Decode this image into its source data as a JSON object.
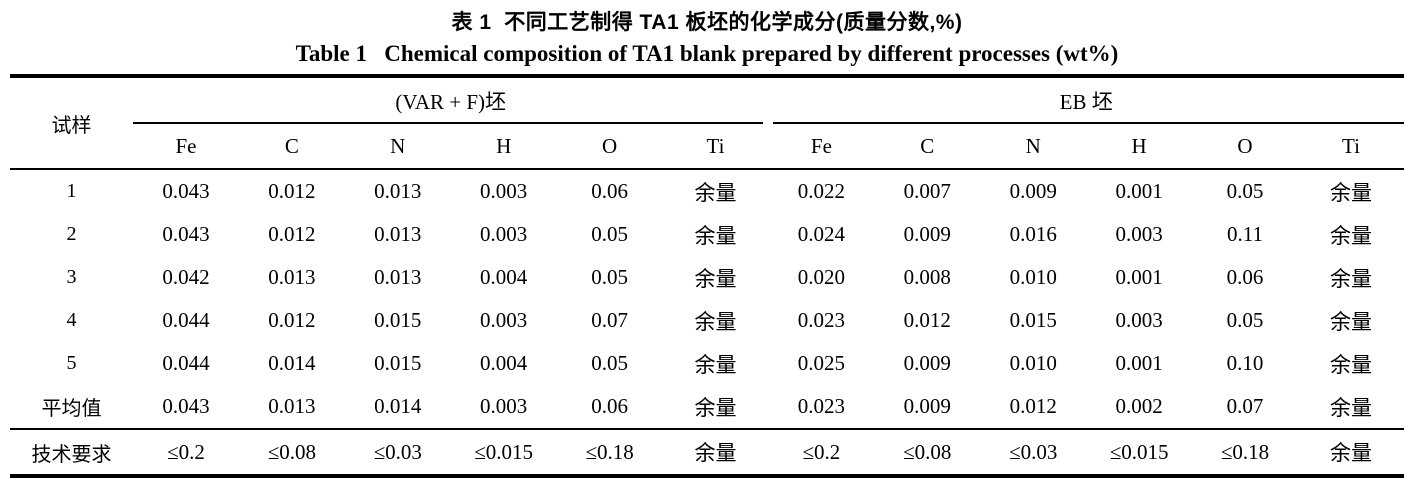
{
  "page": {
    "background": "#ffffff",
    "text_color": "#000000"
  },
  "title": {
    "zh": "表 1  不同工艺制得 TA1 板坯的化学成分(质量分数,%)",
    "en": "Table 1   Chemical composition of TA1 blank prepared by different processes (wt%)"
  },
  "table": {
    "sample_header": "试样",
    "groups": [
      {
        "label": "(VAR + F)坯"
      },
      {
        "label": "EB 坯"
      }
    ],
    "columns": [
      "Fe",
      "C",
      "N",
      "H",
      "O",
      "Ti"
    ],
    "rows": [
      {
        "label": "1",
        "var_f": [
          "0.043",
          "0.012",
          "0.013",
          "0.003",
          "0.06",
          "余量"
        ],
        "eb": [
          "0.022",
          "0.007",
          "0.009",
          "0.001",
          "0.05",
          "余量"
        ]
      },
      {
        "label": "2",
        "var_f": [
          "0.043",
          "0.012",
          "0.013",
          "0.003",
          "0.05",
          "余量"
        ],
        "eb": [
          "0.024",
          "0.009",
          "0.016",
          "0.003",
          "0.11",
          "余量"
        ]
      },
      {
        "label": "3",
        "var_f": [
          "0.042",
          "0.013",
          "0.013",
          "0.004",
          "0.05",
          "余量"
        ],
        "eb": [
          "0.020",
          "0.008",
          "0.010",
          "0.001",
          "0.06",
          "余量"
        ]
      },
      {
        "label": "4",
        "var_f": [
          "0.044",
          "0.012",
          "0.015",
          "0.003",
          "0.07",
          "余量"
        ],
        "eb": [
          "0.023",
          "0.012",
          "0.015",
          "0.003",
          "0.05",
          "余量"
        ]
      },
      {
        "label": "5",
        "var_f": [
          "0.044",
          "0.014",
          "0.015",
          "0.004",
          "0.05",
          "余量"
        ],
        "eb": [
          "0.025",
          "0.009",
          "0.010",
          "0.001",
          "0.10",
          "余量"
        ]
      },
      {
        "label": "平均值",
        "var_f": [
          "0.043",
          "0.013",
          "0.014",
          "0.003",
          "0.06",
          "余量"
        ],
        "eb": [
          "0.023",
          "0.009",
          "0.012",
          "0.002",
          "0.07",
          "余量"
        ]
      },
      {
        "label": "技术要求",
        "var_f": [
          "≤0.2",
          "≤0.08",
          "≤0.03",
          "≤0.015",
          "≤0.18",
          "余量"
        ],
        "eb": [
          "≤0.2",
          "≤0.08",
          "≤0.03",
          "≤0.015",
          "≤0.18",
          "余量"
        ]
      }
    ]
  }
}
